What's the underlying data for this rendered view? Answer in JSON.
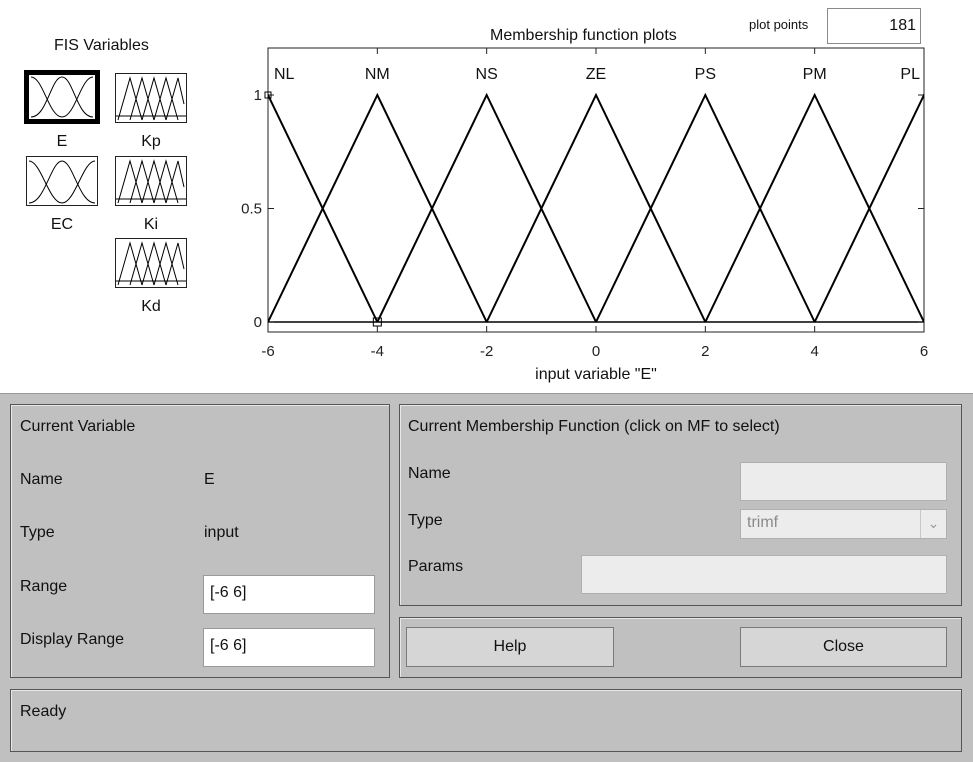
{
  "fis_variables": {
    "title": "FIS Variables",
    "inputs": [
      {
        "name": "E",
        "selected": true
      },
      {
        "name": "EC",
        "selected": false
      }
    ],
    "outputs": [
      {
        "name": "Kp"
      },
      {
        "name": "Ki"
      },
      {
        "name": "Kd"
      }
    ]
  },
  "plot": {
    "title": "Membership function plots",
    "plot_points_label": "plot points",
    "plot_points_value": "181",
    "xlabel": "input variable \"E\""
  },
  "chart_data": {
    "type": "line",
    "title": "Membership function plots",
    "xlabel": "input variable \"E\"",
    "ylabel": "",
    "xlim": [
      -6,
      6
    ],
    "ylim": [
      0,
      1
    ],
    "x_ticks": [
      "-6",
      "-4",
      "-2",
      "0",
      "2",
      "4",
      "6"
    ],
    "y_ticks": [
      "0",
      "0.5",
      "1"
    ],
    "grid": false,
    "series": [
      {
        "name": "NL",
        "points": [
          [
            -8,
            0
          ],
          [
            -6,
            1
          ],
          [
            -4,
            0
          ]
        ]
      },
      {
        "name": "NM",
        "points": [
          [
            -6,
            0
          ],
          [
            -4,
            1
          ],
          [
            -2,
            0
          ]
        ]
      },
      {
        "name": "NS",
        "points": [
          [
            -4,
            0
          ],
          [
            -2,
            1
          ],
          [
            0,
            0
          ]
        ]
      },
      {
        "name": "ZE",
        "points": [
          [
            -2,
            0
          ],
          [
            0,
            1
          ],
          [
            2,
            0
          ]
        ]
      },
      {
        "name": "PS",
        "points": [
          [
            0,
            0
          ],
          [
            2,
            1
          ],
          [
            4,
            0
          ]
        ]
      },
      {
        "name": "PM",
        "points": [
          [
            2,
            0
          ],
          [
            4,
            1
          ],
          [
            6,
            0
          ]
        ]
      },
      {
        "name": "PL",
        "points": [
          [
            4,
            0
          ],
          [
            6,
            1
          ],
          [
            8,
            0
          ]
        ]
      }
    ]
  },
  "current_variable": {
    "title": "Current Variable",
    "name_label": "Name",
    "name_value": "E",
    "type_label": "Type",
    "type_value": "input",
    "range_label": "Range",
    "range_value": "[-6 6]",
    "display_range_label": "Display Range",
    "display_range_value": "[-6 6]"
  },
  "current_mf": {
    "title": "Current Membership Function (click on MF to select)",
    "name_label": "Name",
    "name_value": "",
    "type_label": "Type",
    "type_value": "trimf",
    "params_label": "Params",
    "params_value": ""
  },
  "buttons": {
    "help": "Help",
    "close": "Close"
  },
  "status": {
    "text": "Ready"
  },
  "colors": {
    "panel_bg": "#c0c0c0",
    "plot_line": "#000000"
  }
}
